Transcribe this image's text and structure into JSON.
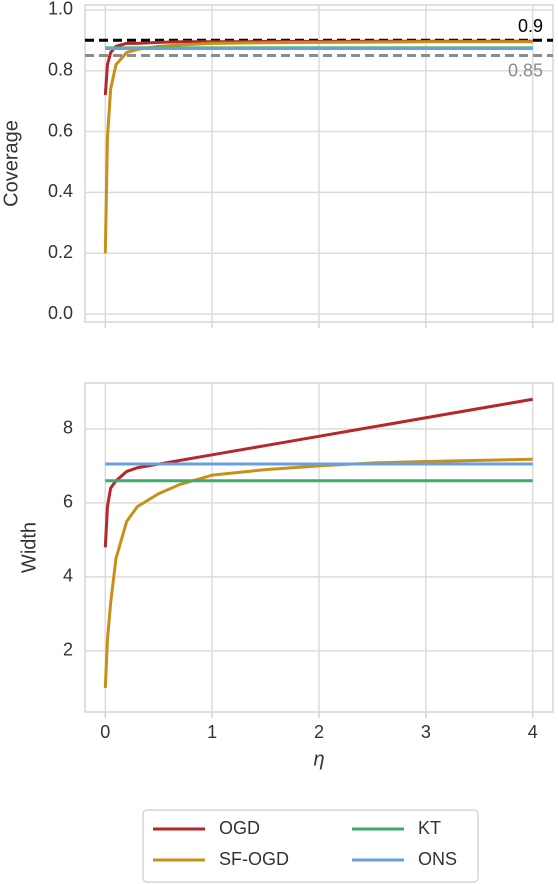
{
  "charts": [
    {
      "type": "line",
      "ylabel": "Coverage",
      "x": [
        0,
        0.02,
        0.05,
        0.1,
        0.2,
        0.3,
        0.5,
        0.7,
        1,
        1.5,
        2,
        2.5,
        3,
        3.5,
        4
      ],
      "series": [
        {
          "color": "#b5272a",
          "values": [
            0.72,
            0.82,
            0.86,
            0.88,
            0.89,
            0.89,
            0.893,
            0.895,
            0.895,
            0.896,
            0.896,
            0.897,
            0.897,
            0.897,
            0.897
          ]
        },
        {
          "color": "#c8901a",
          "values": [
            0.2,
            0.58,
            0.74,
            0.82,
            0.86,
            0.87,
            0.88,
            0.885,
            0.89,
            0.892,
            0.893,
            0.894,
            0.895,
            0.895,
            0.895
          ]
        },
        {
          "color": "#3dab6e",
          "values": [
            0.875,
            0.875,
            0.875,
            0.875,
            0.875,
            0.875,
            0.875,
            0.875,
            0.875,
            0.875,
            0.875,
            0.875,
            0.875,
            0.875,
            0.875
          ]
        },
        {
          "color": "#69a0dc",
          "values": [
            0.873,
            0.873,
            0.873,
            0.873,
            0.873,
            0.873,
            0.873,
            0.873,
            0.873,
            0.873,
            0.873,
            0.873,
            0.873,
            0.873,
            0.873
          ]
        }
      ],
      "hlines": [
        {
          "value": 0.9,
          "color": "#000000"
        },
        {
          "value": 0.85,
          "color": "#8c8c8c"
        }
      ],
      "xlim": [
        -0.19,
        4.19
      ],
      "xticks": [
        0,
        1,
        2,
        3,
        4
      ],
      "ylim": [
        -0.026,
        1.016
      ],
      "yticks": [
        {
          "value": 0,
          "label": "0.0"
        },
        0.2,
        0.4,
        0.6,
        0.8,
        {
          "value": 1,
          "label": "1.0"
        }
      ],
      "grid": true
    },
    {
      "type": "line",
      "xlabel": "η",
      "ylabel": "Width",
      "x": [
        0,
        0.02,
        0.05,
        0.1,
        0.2,
        0.3,
        0.5,
        0.7,
        1,
        1.5,
        2,
        2.5,
        3,
        3.5,
        4
      ],
      "series": [
        {
          "name": "OGD",
          "color": "#b5272a",
          "values": [
            4.8,
            5.9,
            6.4,
            6.6,
            6.85,
            6.95,
            7.05,
            7.15,
            7.3,
            7.55,
            7.8,
            8.05,
            8.3,
            8.55,
            8.8
          ]
        },
        {
          "name": "SF-OGD",
          "color": "#c8901a",
          "values": [
            1.0,
            2.3,
            3.3,
            4.5,
            5.5,
            5.9,
            6.25,
            6.5,
            6.75,
            6.9,
            7.0,
            7.08,
            7.12,
            7.15,
            7.18
          ]
        },
        {
          "name": "KT",
          "color": "#3dab6e",
          "values": [
            6.6,
            6.6,
            6.6,
            6.6,
            6.6,
            6.6,
            6.6,
            6.6,
            6.6,
            6.6,
            6.6,
            6.6,
            6.6,
            6.6,
            6.6
          ]
        },
        {
          "name": "ONS",
          "color": "#69a0dc",
          "values": [
            7.05,
            7.05,
            7.05,
            7.05,
            7.05,
            7.05,
            7.05,
            7.05,
            7.05,
            7.05,
            7.05,
            7.05,
            7.05,
            7.05,
            7.05
          ]
        }
      ],
      "xlim": [
        -0.19,
        4.19
      ],
      "xticks": [
        0,
        1,
        2,
        3,
        4
      ],
      "ylim": [
        0.35,
        9.24
      ],
      "yticks": [
        2,
        4,
        6,
        8
      ],
      "grid": true,
      "legend": "below"
    }
  ]
}
